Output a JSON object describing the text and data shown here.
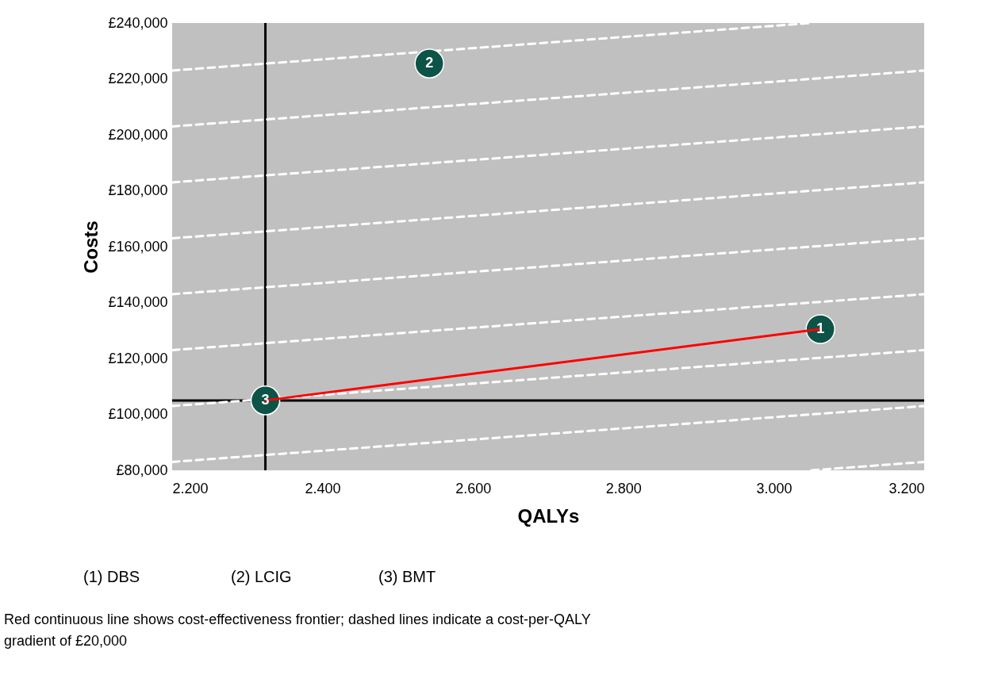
{
  "chart_data": {
    "type": "scatter",
    "xlabel": "QALYs",
    "ylabel": "Costs",
    "xlim": [
      2.2,
      3.2
    ],
    "ylim": [
      80000,
      240000
    ],
    "xticks": [
      {
        "value": 2.2,
        "label": "2.200"
      },
      {
        "value": 2.4,
        "label": "2.400"
      },
      {
        "value": 2.6,
        "label": "2.600"
      },
      {
        "value": 2.8,
        "label": "2.800"
      },
      {
        "value": 3.0,
        "label": "3.000"
      },
      {
        "value": 3.2,
        "label": "3.200"
      }
    ],
    "yticks": [
      {
        "value": 80000,
        "label": "£80,000"
      },
      {
        "value": 100000,
        "label": "£100,000"
      },
      {
        "value": 120000,
        "label": "£120,000"
      },
      {
        "value": 140000,
        "label": "£140,000"
      },
      {
        "value": 160000,
        "label": "£160,000"
      },
      {
        "value": 180000,
        "label": "£180,000"
      },
      {
        "value": 200000,
        "label": "£200,000"
      },
      {
        "value": 220000,
        "label": "£220,000"
      },
      {
        "value": 240000,
        "label": "£240,000"
      }
    ],
    "grid": false,
    "series": [
      {
        "type": "line",
        "color": "#ffffff",
        "line_style": "dashed",
        "x": [
          3.05,
          3.2
        ],
        "values": [
          80000,
          83000
        ]
      },
      {
        "type": "line",
        "color": "#ffffff",
        "line_style": "dashed",
        "x": [
          2.2,
          3.2
        ],
        "values": [
          83000,
          103000
        ]
      },
      {
        "type": "line",
        "color": "#ffffff",
        "line_style": "dashed",
        "x": [
          2.2,
          3.2
        ],
        "values": [
          103000,
          123000
        ]
      },
      {
        "type": "line",
        "color": "#ffffff",
        "line_style": "dashed",
        "x": [
          2.2,
          3.2
        ],
        "values": [
          123000,
          143000
        ]
      },
      {
        "type": "line",
        "color": "#ffffff",
        "line_style": "dashed",
        "x": [
          2.2,
          3.2
        ],
        "values": [
          143000,
          163000
        ]
      },
      {
        "type": "line",
        "color": "#ffffff",
        "line_style": "dashed",
        "x": [
          2.2,
          3.2
        ],
        "values": [
          163000,
          183000
        ]
      },
      {
        "type": "line",
        "color": "#ffffff",
        "line_style": "dashed",
        "x": [
          2.2,
          3.2
        ],
        "values": [
          183000,
          203000
        ]
      },
      {
        "type": "line",
        "color": "#ffffff",
        "line_style": "dashed",
        "x": [
          2.2,
          3.2
        ],
        "values": [
          203000,
          223000
        ]
      },
      {
        "type": "line",
        "color": "#ffffff",
        "line_style": "dashed",
        "x": [
          2.2,
          3.05
        ],
        "values": [
          223000,
          240000
        ]
      },
      {
        "type": "line",
        "color": "#ff0000",
        "line_style": "solid",
        "x": [
          2.324,
          3.062
        ],
        "values": [
          105000,
          130500
        ]
      },
      {
        "color": "#0d5347",
        "marker": "circle",
        "x": [
          3.062,
          2.542,
          2.324
        ],
        "values": [
          130500,
          225500,
          105000
        ]
      }
    ],
    "ref_lines": [
      {
        "axis": "x",
        "value": 2.324,
        "color": "#000000"
      },
      {
        "axis": "y",
        "value": 105000,
        "color": "#000000"
      }
    ],
    "annotations": [
      {
        "text": "1",
        "x": 3.062,
        "y": 130500
      },
      {
        "text": "2",
        "x": 2.542,
        "y": 225500
      },
      {
        "text": "3",
        "x": 2.324,
        "y": 105000
      },
      "(1) DBS",
      "(2) LCIG",
      "(3) BMT",
      "Red continuous line shows cost-effectiveness frontier; dashed lines indicate a cost-per-QALY gradient of £20,000"
    ]
  }
}
